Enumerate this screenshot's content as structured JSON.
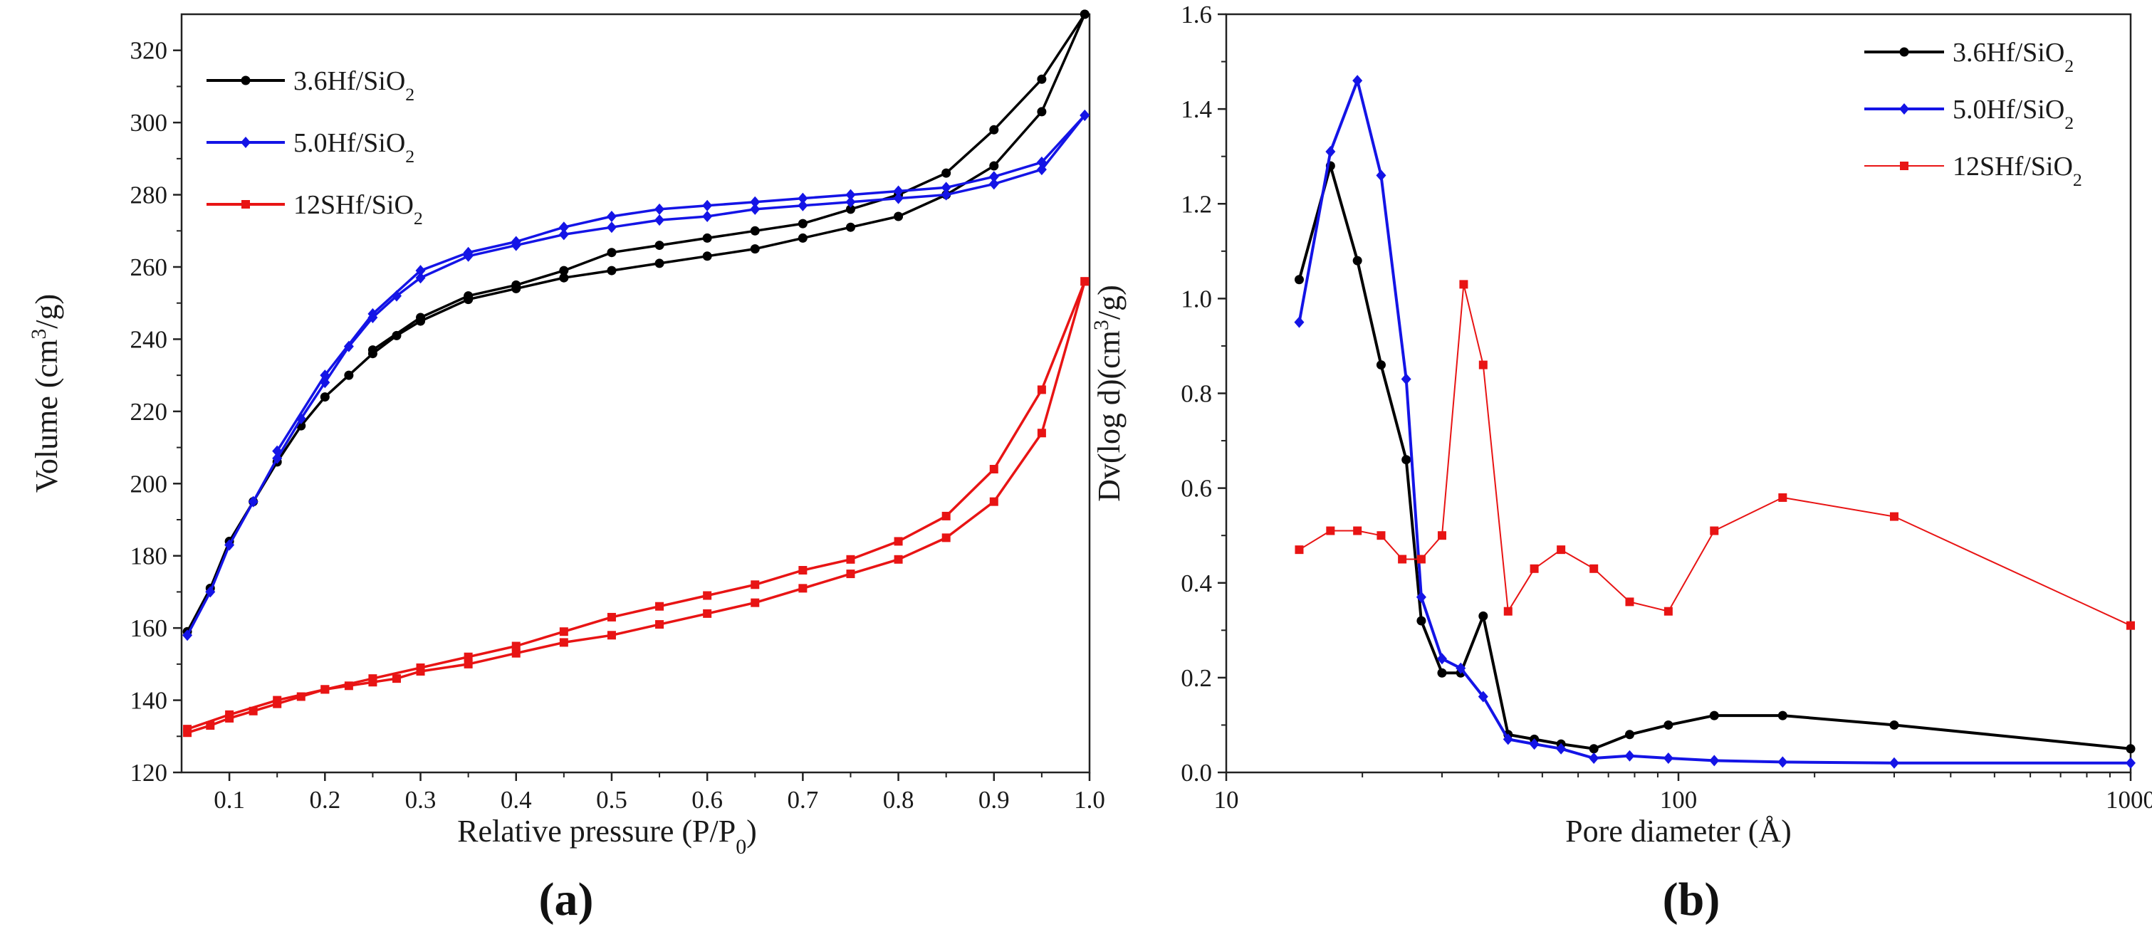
{
  "chart_data": [
    {
      "panel": "(a)",
      "type": "line",
      "xlabel": "Relative pressure (P/P",
      "xlabel_sub": "0",
      "xlabel_end": ")",
      "ylabel": "Volume (cm",
      "ylabel_sup": "3",
      "ylabel_end": "/g)",
      "xlim": [
        0.05,
        1.0
      ],
      "ylim": [
        120,
        330
      ],
      "xticks": [
        0.1,
        0.2,
        0.3,
        0.4,
        0.5,
        0.6,
        0.7,
        0.8,
        0.9,
        1.0
      ],
      "xtick_labels": [
        "0.1",
        "0.2",
        "0.3",
        "0.4",
        "0.5",
        "0.6",
        "0.7",
        "0.8",
        "0.9",
        "1.0"
      ],
      "yticks": [
        120,
        140,
        160,
        180,
        200,
        220,
        240,
        260,
        280,
        300,
        320
      ],
      "ytick_labels": [
        "120",
        "140",
        "160",
        "180",
        "200",
        "220",
        "240",
        "260",
        "280",
        "300",
        "320"
      ],
      "legend_position": "top-left",
      "series": [
        {
          "name": "3.6Hf/SiO",
          "sub": "2",
          "color": "#000000",
          "marker": "circle",
          "branches": [
            {
              "x": [
                0.056,
                0.08,
                0.1,
                0.125,
                0.15,
                0.175,
                0.2,
                0.225,
                0.25,
                0.275,
                0.3,
                0.35,
                0.4,
                0.45,
                0.5,
                0.55,
                0.6,
                0.65,
                0.7,
                0.75,
                0.8,
                0.85,
                0.9,
                0.95,
                0.995
              ],
              "y": [
                159,
                171,
                184,
                195,
                206,
                216,
                224,
                230,
                236,
                241,
                245,
                251,
                254,
                257,
                259,
                261,
                263,
                265,
                268,
                271,
                274,
                280,
                288,
                303,
                330
              ]
            },
            {
              "x": [
                0.995,
                0.95,
                0.9,
                0.85,
                0.8,
                0.75,
                0.7,
                0.65,
                0.6,
                0.55,
                0.5,
                0.45,
                0.4,
                0.35,
                0.3,
                0.25
              ],
              "y": [
                330,
                312,
                298,
                286,
                280,
                276,
                272,
                270,
                268,
                266,
                264,
                259,
                255,
                252,
                246,
                237
              ]
            }
          ]
        },
        {
          "name": "5.0Hf/SiO",
          "sub": "2",
          "color": "#1414e6",
          "marker": "diamond",
          "branches": [
            {
              "x": [
                0.056,
                0.08,
                0.1,
                0.125,
                0.15,
                0.175,
                0.2,
                0.225,
                0.25,
                0.275,
                0.3,
                0.35,
                0.4,
                0.45,
                0.5,
                0.55,
                0.6,
                0.65,
                0.7,
                0.75,
                0.8,
                0.85,
                0.9,
                0.95,
                0.995
              ],
              "y": [
                158,
                170,
                183,
                195,
                207,
                218,
                228,
                238,
                246,
                252,
                257,
                263,
                266,
                269,
                271,
                273,
                274,
                276,
                277,
                278,
                279,
                280,
                283,
                287,
                302
              ]
            },
            {
              "x": [
                0.995,
                0.95,
                0.9,
                0.85,
                0.8,
                0.75,
                0.7,
                0.65,
                0.6,
                0.55,
                0.5,
                0.45,
                0.4,
                0.35,
                0.3,
                0.25,
                0.2,
                0.15
              ],
              "y": [
                302,
                289,
                285,
                282,
                281,
                280,
                279,
                278,
                277,
                276,
                274,
                271,
                267,
                264,
                259,
                247,
                230,
                209
              ]
            }
          ]
        },
        {
          "name": "12SHf/SiO",
          "sub": "2",
          "color": "#e81414",
          "marker": "square",
          "branches": [
            {
              "x": [
                0.056,
                0.08,
                0.1,
                0.125,
                0.15,
                0.175,
                0.2,
                0.225,
                0.25,
                0.275,
                0.3,
                0.35,
                0.4,
                0.45,
                0.5,
                0.55,
                0.6,
                0.65,
                0.7,
                0.75,
                0.8,
                0.85,
                0.9,
                0.95,
                0.995
              ],
              "y": [
                131,
                133,
                135,
                137,
                139,
                141,
                143,
                144,
                145,
                146,
                148,
                150,
                153,
                156,
                158,
                161,
                164,
                167,
                171,
                175,
                179,
                185,
                195,
                214,
                256
              ]
            },
            {
              "x": [
                0.995,
                0.95,
                0.9,
                0.85,
                0.8,
                0.75,
                0.7,
                0.65,
                0.6,
                0.55,
                0.5,
                0.45,
                0.4,
                0.35,
                0.3,
                0.25,
                0.2,
                0.15,
                0.1,
                0.056
              ],
              "y": [
                256,
                226,
                204,
                191,
                184,
                179,
                176,
                172,
                169,
                166,
                163,
                159,
                155,
                152,
                149,
                146,
                143,
                140,
                136,
                132
              ]
            }
          ]
        }
      ]
    },
    {
      "panel": "(b)",
      "type": "line",
      "xscale": "log",
      "xlabel": "Pore diameter (Å)",
      "ylabel": "Dv(log d)(cm",
      "ylabel_sup": "3",
      "ylabel_end": "/g)",
      "xlim": [
        10,
        1000
      ],
      "ylim": [
        0.0,
        1.6
      ],
      "xticks": [
        10,
        100,
        1000
      ],
      "xtick_labels": [
        "10",
        "100",
        "1000"
      ],
      "yticks": [
        0.0,
        0.2,
        0.4,
        0.6,
        0.8,
        1.0,
        1.2,
        1.4,
        1.6
      ],
      "ytick_labels": [
        "0.0",
        "0.2",
        "0.4",
        "0.6",
        "0.8",
        "1.0",
        "1.2",
        "1.4",
        "1.6"
      ],
      "legend_position": "top-right",
      "series": [
        {
          "name": "3.6Hf/SiO",
          "sub": "2",
          "color": "#000000",
          "marker": "circle",
          "line_width": 4,
          "x": [
            14.5,
            17,
            19.5,
            22,
            25,
            27,
            30,
            33,
            37,
            42,
            48,
            55,
            65,
            78,
            95,
            120,
            170,
            300,
            1000
          ],
          "y": [
            1.04,
            1.28,
            1.08,
            0.86,
            0.66,
            0.32,
            0.21,
            0.21,
            0.33,
            0.08,
            0.07,
            0.06,
            0.05,
            0.08,
            0.1,
            0.12,
            0.12,
            0.1,
            0.05
          ]
        },
        {
          "name": "5.0Hf/SiO",
          "sub": "2",
          "color": "#1414e6",
          "marker": "diamond",
          "line_width": 4,
          "x": [
            14.5,
            17,
            19.5,
            22,
            25,
            27,
            30,
            33,
            37,
            42,
            48,
            55,
            65,
            78,
            95,
            120,
            170,
            300,
            1000
          ],
          "y": [
            0.95,
            1.31,
            1.46,
            1.26,
            0.83,
            0.37,
            0.24,
            0.22,
            0.16,
            0.07,
            0.06,
            0.05,
            0.03,
            0.035,
            0.03,
            0.025,
            0.022,
            0.02,
            0.02
          ]
        },
        {
          "name": "12SHf/SiO",
          "sub": "2",
          "color": "#e81414",
          "marker": "square",
          "line_width": 2,
          "x": [
            14.5,
            17,
            19.5,
            22,
            24.5,
            27,
            30,
            33.5,
            37,
            42,
            48,
            55,
            65,
            78,
            95,
            120,
            170,
            300,
            1000
          ],
          "y": [
            0.47,
            0.51,
            0.51,
            0.5,
            0.45,
            0.45,
            0.5,
            1.03,
            0.86,
            0.34,
            0.43,
            0.47,
            0.43,
            0.36,
            0.34,
            0.51,
            0.58,
            0.54,
            0.31
          ]
        }
      ]
    }
  ]
}
